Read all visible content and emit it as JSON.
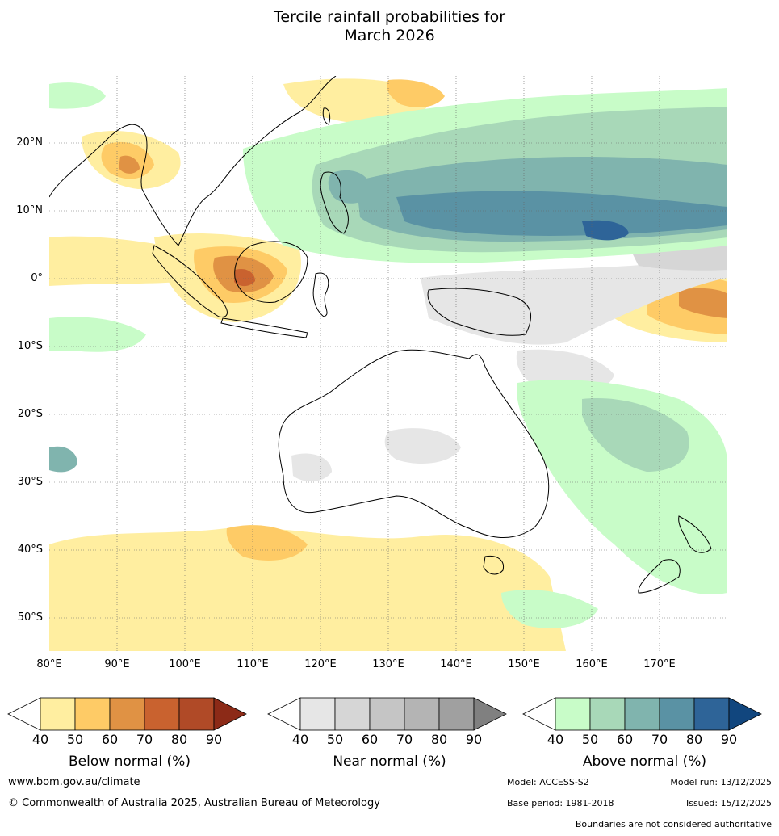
{
  "title": {
    "line1": "Tercile rainfall probabilities for",
    "line2": "March 2026"
  },
  "lat_labels": [
    "20°N",
    "10°N",
    "0°",
    "10°S",
    "20°S",
    "30°S",
    "40°S",
    "50°S"
  ],
  "lon_labels": [
    "80°E",
    "90°E",
    "100°E",
    "110°E",
    "120°E",
    "130°E",
    "140°E",
    "150°E",
    "160°E",
    "170°E"
  ],
  "legends": [
    {
      "title": "Below normal (%)",
      "ticks": [
        "40",
        "50",
        "60",
        "70",
        "80",
        "90"
      ],
      "colors": [
        "#ffffff",
        "#ffeea0",
        "#fecb66",
        "#e09244",
        "#c9622f",
        "#b04a27",
        "#8c2a17"
      ]
    },
    {
      "title": "Near normal (%)",
      "ticks": [
        "40",
        "50",
        "60",
        "70",
        "80",
        "90"
      ],
      "colors": [
        "#ffffff",
        "#e6e6e6",
        "#d6d6d6",
        "#c5c5c5",
        "#b4b4b4",
        "#a0a0a0",
        "#808080"
      ]
    },
    {
      "title": "Above normal (%)",
      "ticks": [
        "40",
        "50",
        "60",
        "70",
        "80",
        "90"
      ],
      "colors": [
        "#ffffff",
        "#c8fcc8",
        "#a8d8b8",
        "#80b4ae",
        "#5a92a4",
        "#2e6498",
        "#11467e"
      ]
    }
  ],
  "footer": {
    "website": "www.bom.gov.au/climate",
    "copyright": "© Commonwealth of Australia 2025, Australian Bureau of Meteorology",
    "model": "Model: ACCESS-S2",
    "model_run": "Model run: 13/12/2025",
    "base_period": "Base period: 1981-2018",
    "issued": "Issued: 15/12/2025",
    "disclaimer": "Boundaries are not considered authoritative"
  }
}
